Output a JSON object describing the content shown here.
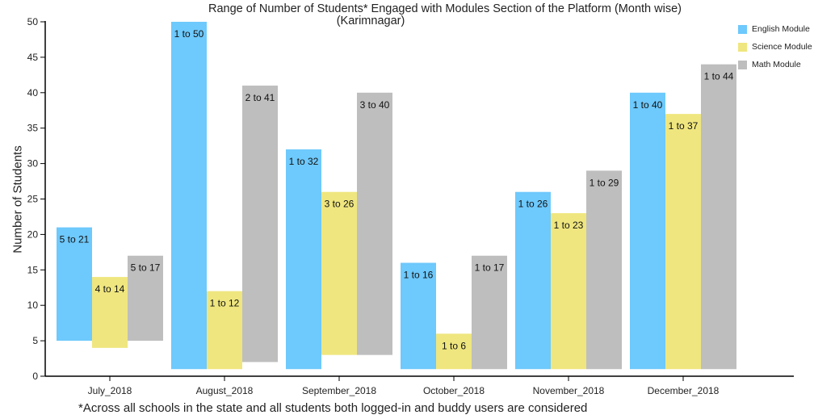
{
  "chart_data": {
    "type": "bar",
    "subtype": "floating-range",
    "title": "Range of Number of Students* Engaged with Modules Section of the Platform (Month wise)",
    "subtitle": "(Karimnagar)",
    "ylabel": "Number of Students",
    "xlabel": "",
    "footnote": "*Across all schools in the state and all students both logged-in and buddy users are considered",
    "ylim": [
      0,
      50
    ],
    "yticks": [
      0,
      5,
      10,
      15,
      20,
      25,
      30,
      35,
      40,
      45,
      50
    ],
    "categories": [
      "July_2018",
      "August_2018",
      "September_2018",
      "October_2018",
      "November_2018",
      "December_2018"
    ],
    "series": [
      {
        "name": "English Module",
        "color": "#6ec9fc",
        "ranges": [
          [
            5,
            21
          ],
          [
            1,
            50
          ],
          [
            1,
            32
          ],
          [
            1,
            16
          ],
          [
            1,
            26
          ],
          [
            1,
            40
          ]
        ],
        "labels": [
          "5 to 21",
          "1 to 50",
          "1 to 32",
          "1 to 16",
          "1 to 26",
          "1 to 40"
        ]
      },
      {
        "name": "Science Module",
        "color": "#efe67f",
        "ranges": [
          [
            4,
            14
          ],
          [
            1,
            12
          ],
          [
            3,
            26
          ],
          [
            1,
            6
          ],
          [
            1,
            23
          ],
          [
            1,
            37
          ]
        ],
        "labels": [
          "4 to 14",
          "1 to 12",
          "3 to 26",
          "1 to 6",
          "1 to 23",
          "1 to 37"
        ]
      },
      {
        "name": "Math Module",
        "color": "#bebebe",
        "ranges": [
          [
            5,
            17
          ],
          [
            2,
            41
          ],
          [
            3,
            40
          ],
          [
            1,
            17
          ],
          [
            1,
            29
          ],
          [
            1,
            44
          ]
        ],
        "labels": [
          "5 to 17",
          "2 to 41",
          "3 to 40",
          "1 to 17",
          "1 to 29",
          "1 to 44"
        ]
      }
    ],
    "legend_position": "top-right",
    "grid": false
  }
}
